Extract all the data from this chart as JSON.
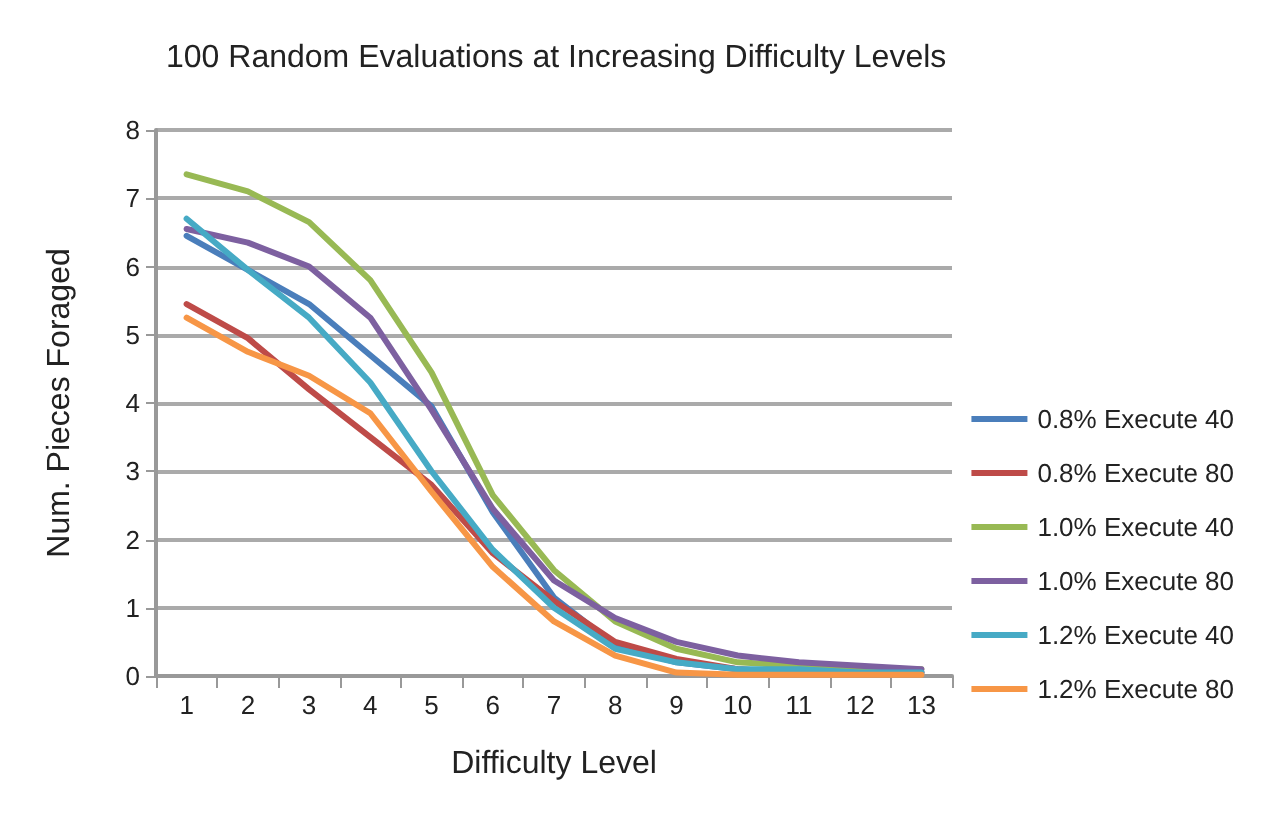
{
  "chart_data": {
    "type": "line",
    "title": "100 Random Evaluations at Increasing Difficulty Levels",
    "xlabel": "Difficulty Level",
    "ylabel": "Num. Pieces Foraged",
    "categories": [
      "1",
      "2",
      "3",
      "4",
      "5",
      "6",
      "7",
      "8",
      "9",
      "10",
      "11",
      "12",
      "13"
    ],
    "series": [
      {
        "name": "0.8% Execute 40",
        "color": "#4a7ebb",
        "values": [
          6.45,
          5.95,
          5.45,
          4.7,
          3.95,
          2.4,
          1.15,
          0.45,
          0.2,
          0.1,
          0.05,
          0.05,
          0.05
        ]
      },
      {
        "name": "0.8% Execute 80",
        "color": "#be4b48",
        "values": [
          5.45,
          4.95,
          4.2,
          3.5,
          2.8,
          1.8,
          1.1,
          0.5,
          0.25,
          0.1,
          0.05,
          0.05,
          0.05
        ]
      },
      {
        "name": "1.0% Execute 40",
        "color": "#98b954",
        "values": [
          7.35,
          7.1,
          6.65,
          5.8,
          4.45,
          2.65,
          1.55,
          0.8,
          0.4,
          0.2,
          0.15,
          0.1,
          0.1
        ]
      },
      {
        "name": "1.0% Execute 80",
        "color": "#7d60a0",
        "values": [
          6.55,
          6.35,
          6.0,
          5.25,
          3.9,
          2.45,
          1.4,
          0.85,
          0.5,
          0.3,
          0.2,
          0.15,
          0.1
        ]
      },
      {
        "name": "1.2% Execute 40",
        "color": "#46aac5",
        "values": [
          6.7,
          5.95,
          5.25,
          4.3,
          3.0,
          1.85,
          1.0,
          0.4,
          0.2,
          0.1,
          0.1,
          0.05,
          0.05
        ]
      },
      {
        "name": "1.2% Execute 80",
        "color": "#f79646",
        "values": [
          5.25,
          4.75,
          4.4,
          3.85,
          2.7,
          1.6,
          0.8,
          0.3,
          0.05,
          0.02,
          0.02,
          0.02,
          0.02
        ]
      }
    ],
    "ylim": [
      0,
      8
    ],
    "yticks": [
      0,
      1,
      2,
      3,
      4,
      5,
      6,
      7,
      8
    ],
    "grid": "y",
    "legend": "right",
    "marker": "none",
    "line_style": "solid"
  }
}
